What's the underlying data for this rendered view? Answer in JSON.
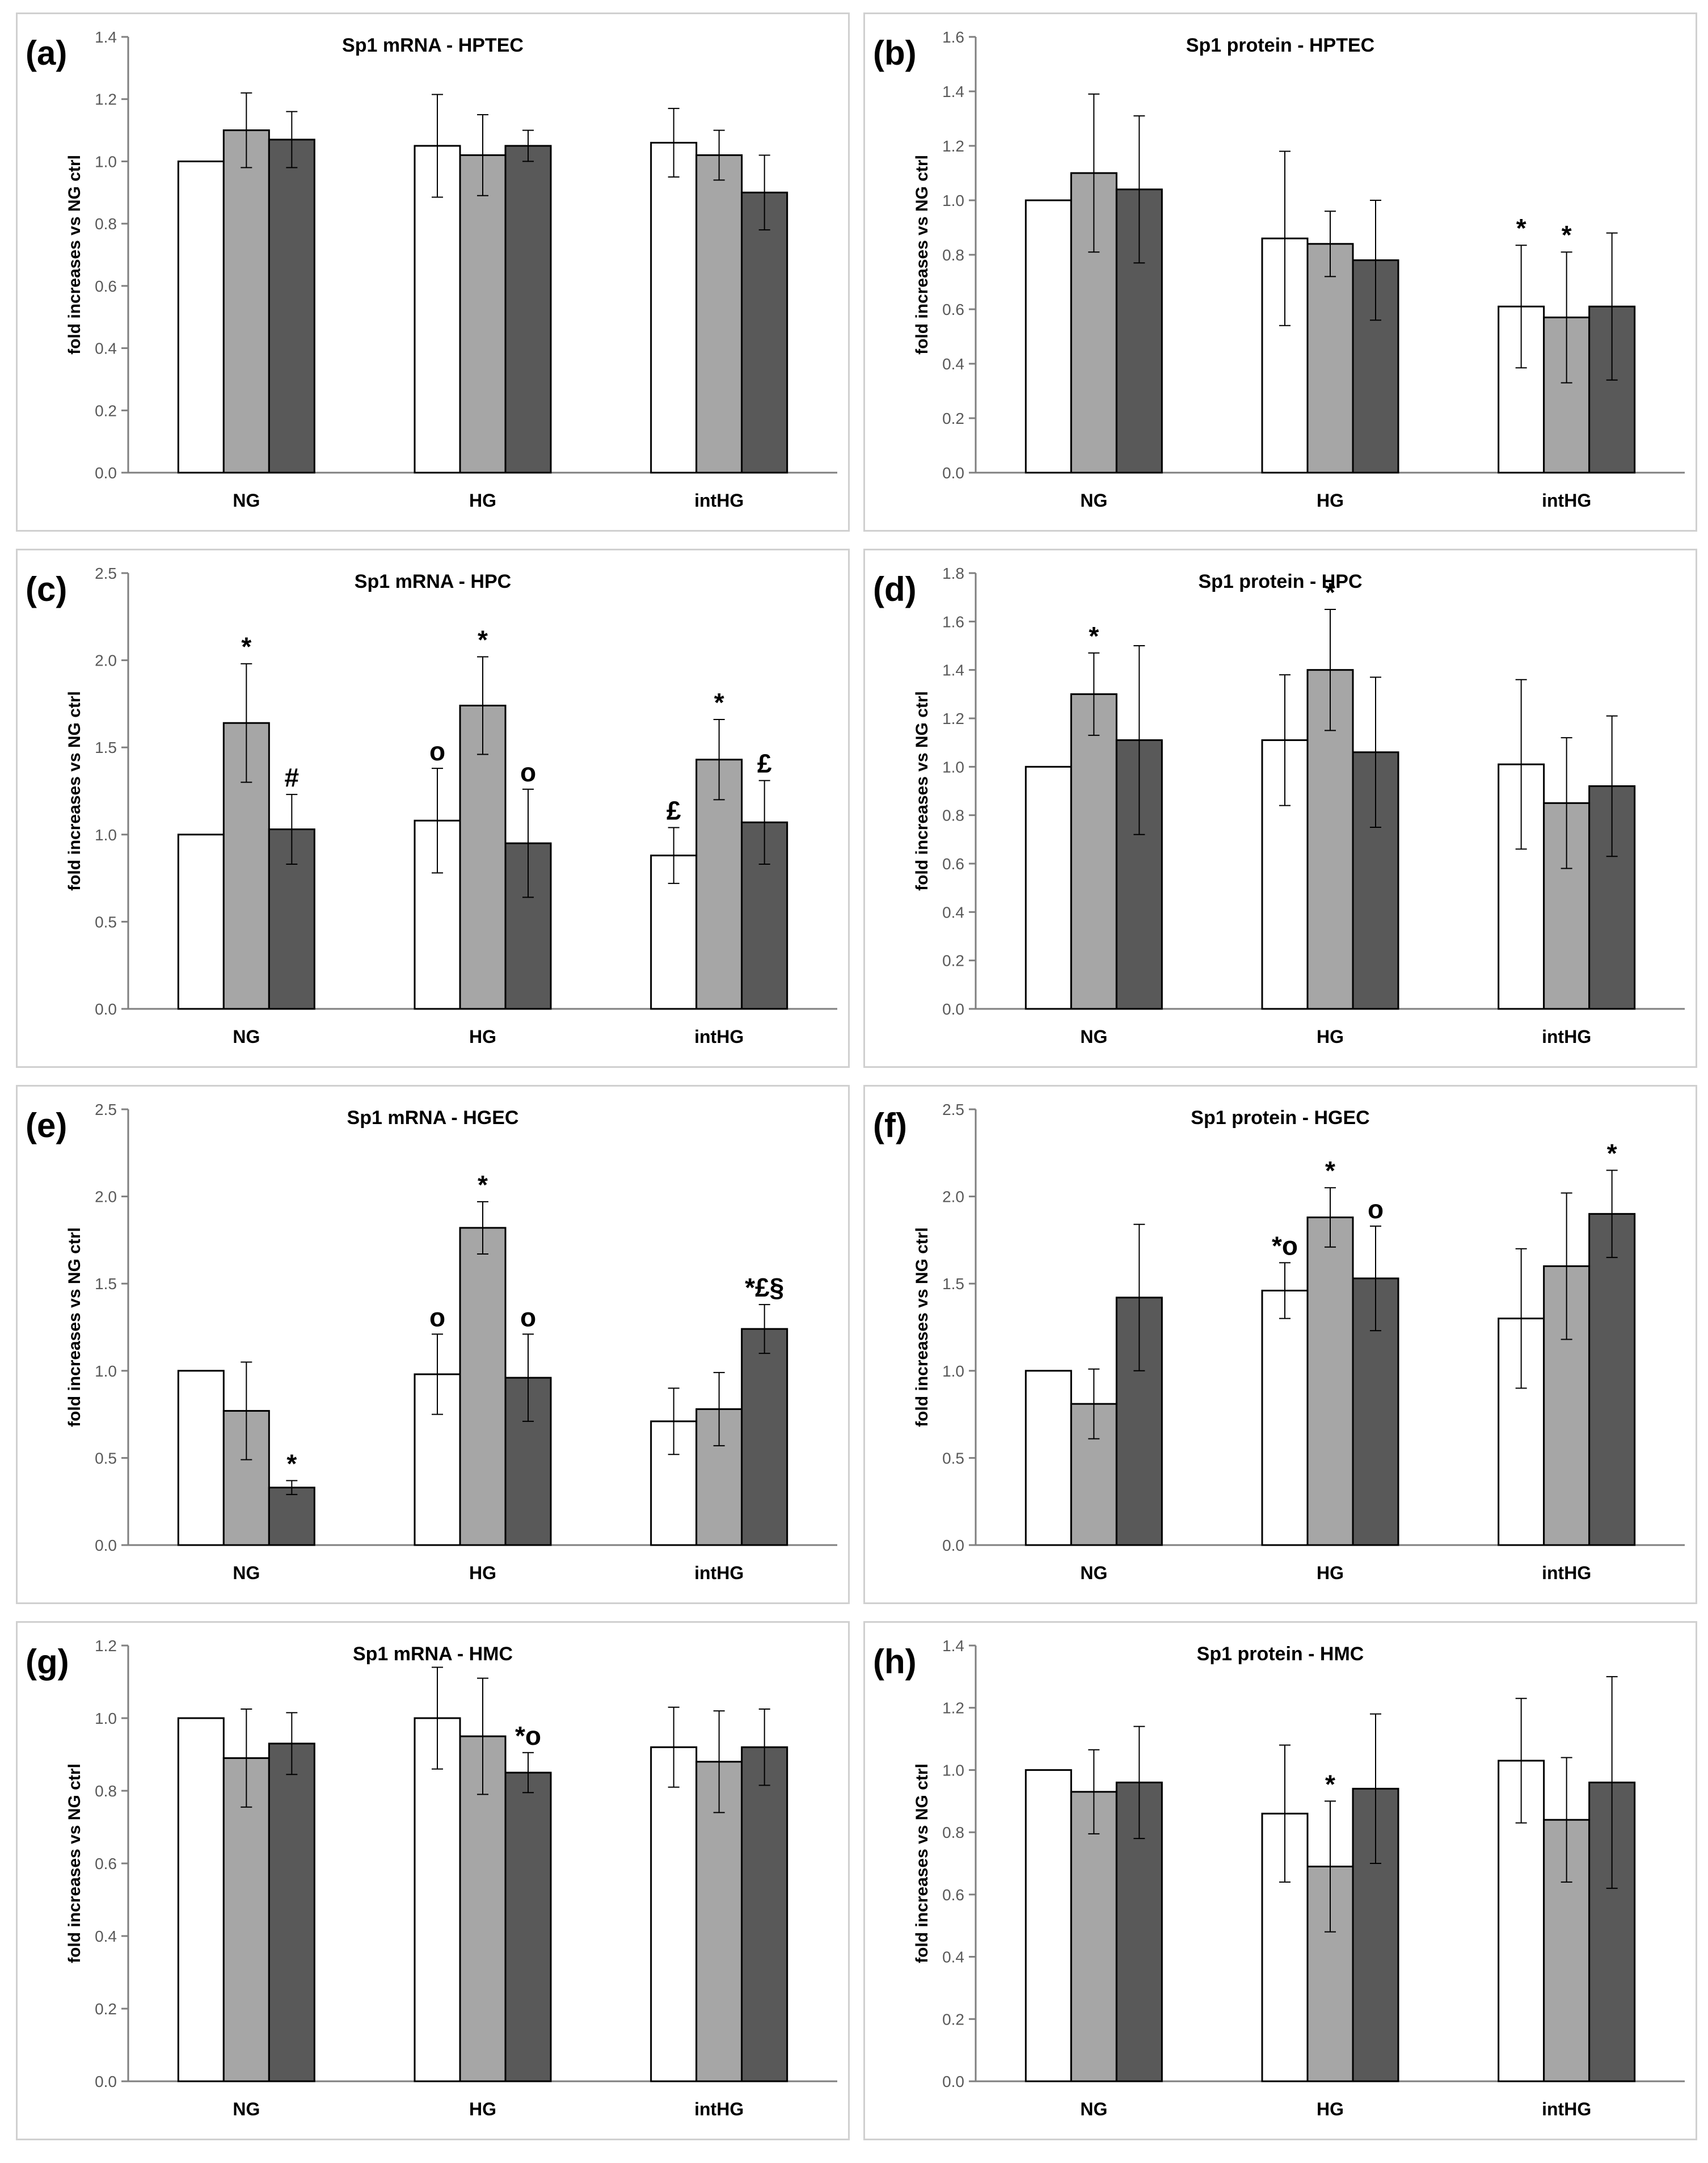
{
  "colors": {
    "NG_bar": "#ffffff",
    "middle_bar": "#a6a6a6",
    "dark_bar": "#595959",
    "axis": "#7f7f7f",
    "panel_border": "#d0d0d0"
  },
  "chart_data": [
    {
      "letter": "(a)",
      "title": "Sp1 mRNA - HPTEC",
      "type": "bar",
      "ylabel": "fold increases vs NG ctrl",
      "ylim": [
        0,
        1.4
      ],
      "ystep": 0.2,
      "categories": [
        "NG",
        "HG",
        "intHG"
      ],
      "series": [
        {
          "name": "white",
          "values": [
            1.0,
            1.05,
            1.06
          ],
          "errors": [
            0,
            0.165,
            0.11
          ],
          "annotations": [
            "",
            "",
            ""
          ]
        },
        {
          "name": "gray",
          "values": [
            1.1,
            1.02,
            1.02
          ],
          "errors": [
            0.12,
            0.13,
            0.08
          ],
          "annotations": [
            "",
            "",
            ""
          ]
        },
        {
          "name": "dark",
          "values": [
            1.07,
            1.05,
            0.9
          ],
          "errors": [
            0.09,
            0.05,
            0.12
          ],
          "annotations": [
            "",
            "",
            ""
          ]
        }
      ]
    },
    {
      "letter": "(b)",
      "title": "Sp1 protein - HPTEC",
      "type": "bar",
      "ylabel": "fold increases vs NG ctrl",
      "ylim": [
        0,
        1.6
      ],
      "ystep": 0.2,
      "categories": [
        "NG",
        "HG",
        "intHG"
      ],
      "series": [
        {
          "name": "white",
          "values": [
            1.0,
            0.86,
            0.61
          ],
          "errors": [
            0,
            0.32,
            0.225
          ],
          "annotations": [
            "",
            "",
            "*"
          ]
        },
        {
          "name": "gray",
          "values": [
            1.1,
            0.84,
            0.57
          ],
          "errors": [
            0.29,
            0.12,
            0.24
          ],
          "annotations": [
            "",
            "",
            "*"
          ]
        },
        {
          "name": "dark",
          "values": [
            1.04,
            0.78,
            0.61
          ],
          "errors": [
            0.27,
            0.22,
            0.27
          ],
          "annotations": [
            "",
            "",
            ""
          ]
        }
      ]
    },
    {
      "letter": "(c)",
      "title": "Sp1 mRNA - HPC",
      "type": "bar",
      "ylabel": "fold increases vs NG ctrl",
      "ylim": [
        0,
        2.5
      ],
      "ystep": 0.5,
      "categories": [
        "NG",
        "HG",
        "intHG"
      ],
      "series": [
        {
          "name": "white",
          "values": [
            1.0,
            1.08,
            0.88
          ],
          "errors": [
            0,
            0.3,
            0.16
          ],
          "annotations": [
            "",
            "o",
            "£"
          ]
        },
        {
          "name": "gray",
          "values": [
            1.64,
            1.74,
            1.43
          ],
          "errors": [
            0.34,
            0.28,
            0.23
          ],
          "annotations": [
            "*",
            "*",
            "*"
          ]
        },
        {
          "name": "dark",
          "values": [
            1.03,
            0.95,
            1.07
          ],
          "errors": [
            0.2,
            0.31,
            0.24
          ],
          "annotations": [
            "#",
            "o",
            "£"
          ]
        }
      ]
    },
    {
      "letter": "(d)",
      "title": "Sp1 protein - HPC",
      "type": "bar",
      "ylabel": "fold increases vs NG ctrl",
      "ylim": [
        0,
        1.8
      ],
      "ystep": 0.2,
      "categories": [
        "NG",
        "HG",
        "intHG"
      ],
      "series": [
        {
          "name": "white",
          "values": [
            1.0,
            1.11,
            1.01
          ],
          "errors": [
            0,
            0.27,
            0.35
          ],
          "annotations": [
            "",
            "",
            ""
          ]
        },
        {
          "name": "gray",
          "values": [
            1.3,
            1.4,
            0.85
          ],
          "errors": [
            0.17,
            0.25,
            0.27
          ],
          "annotations": [
            "*",
            "*",
            ""
          ]
        },
        {
          "name": "dark",
          "values": [
            1.11,
            1.06,
            0.92
          ],
          "errors": [
            0.39,
            0.31,
            0.29
          ],
          "annotations": [
            "",
            "",
            ""
          ]
        }
      ]
    },
    {
      "letter": "(e)",
      "title": "Sp1 mRNA - HGEC",
      "type": "bar",
      "ylabel": "fold increases vs NG ctrl",
      "ylim": [
        0,
        2.5
      ],
      "ystep": 0.5,
      "categories": [
        "NG",
        "HG",
        "intHG"
      ],
      "series": [
        {
          "name": "white",
          "values": [
            1.0,
            0.98,
            0.71
          ],
          "errors": [
            0,
            0.23,
            0.19
          ],
          "annotations": [
            "",
            "o",
            ""
          ]
        },
        {
          "name": "gray",
          "values": [
            0.77,
            1.82,
            0.78
          ],
          "errors": [
            0.28,
            0.15,
            0.21
          ],
          "annotations": [
            "",
            "*",
            ""
          ]
        },
        {
          "name": "dark",
          "values": [
            0.33,
            0.96,
            1.24
          ],
          "errors": [
            0.04,
            0.25,
            0.14
          ],
          "annotations": [
            "*",
            "o",
            "*£§"
          ]
        }
      ]
    },
    {
      "letter": "(f)",
      "title": "Sp1 protein - HGEC",
      "type": "bar",
      "ylabel": "fold increases vs NG ctrl",
      "ylim": [
        0,
        2.5
      ],
      "ystep": 0.5,
      "categories": [
        "NG",
        "HG",
        "intHG"
      ],
      "series": [
        {
          "name": "white",
          "values": [
            1.0,
            1.46,
            1.3
          ],
          "errors": [
            0,
            0.16,
            0.4
          ],
          "annotations": [
            "",
            "*o",
            ""
          ]
        },
        {
          "name": "gray",
          "values": [
            0.81,
            1.88,
            1.6
          ],
          "errors": [
            0.2,
            0.17,
            0.42
          ],
          "annotations": [
            "",
            "*",
            ""
          ]
        },
        {
          "name": "dark",
          "values": [
            1.42,
            1.53,
            1.9
          ],
          "errors": [
            0.42,
            0.3,
            0.25
          ],
          "annotations": [
            "",
            "o",
            "*"
          ]
        }
      ]
    },
    {
      "letter": "(g)",
      "title": "Sp1 mRNA - HMC",
      "type": "bar",
      "ylabel": "fold increases vs NG ctrl",
      "ylim": [
        0,
        1.2
      ],
      "ystep": 0.2,
      "categories": [
        "NG",
        "HG",
        "intHG"
      ],
      "series": [
        {
          "name": "white",
          "values": [
            1.0,
            1.0,
            0.92
          ],
          "errors": [
            0,
            0.14,
            0.11
          ],
          "annotations": [
            "",
            "",
            ""
          ]
        },
        {
          "name": "gray",
          "values": [
            0.89,
            0.95,
            0.88
          ],
          "errors": [
            0.135,
            0.16,
            0.14
          ],
          "annotations": [
            "",
            "",
            ""
          ]
        },
        {
          "name": "dark",
          "values": [
            0.93,
            0.85,
            0.92
          ],
          "errors": [
            0.085,
            0.055,
            0.105
          ],
          "annotations": [
            "",
            "*o",
            ""
          ]
        }
      ]
    },
    {
      "letter": "(h)",
      "title": "Sp1 protein - HMC",
      "type": "bar",
      "ylabel": "fold increases vs NG ctrl",
      "ylim": [
        0,
        1.4
      ],
      "ystep": 0.2,
      "categories": [
        "NG",
        "HG",
        "intHG"
      ],
      "series": [
        {
          "name": "white",
          "values": [
            1.0,
            0.86,
            1.03
          ],
          "errors": [
            0,
            0.22,
            0.2
          ],
          "annotations": [
            "",
            "",
            ""
          ]
        },
        {
          "name": "gray",
          "values": [
            0.93,
            0.69,
            0.84
          ],
          "errors": [
            0.135,
            0.21,
            0.2
          ],
          "annotations": [
            "",
            "*",
            ""
          ]
        },
        {
          "name": "dark",
          "values": [
            0.96,
            0.94,
            0.96
          ],
          "errors": [
            0.18,
            0.24,
            0.34
          ],
          "annotations": [
            "",
            "",
            ""
          ]
        }
      ]
    }
  ]
}
